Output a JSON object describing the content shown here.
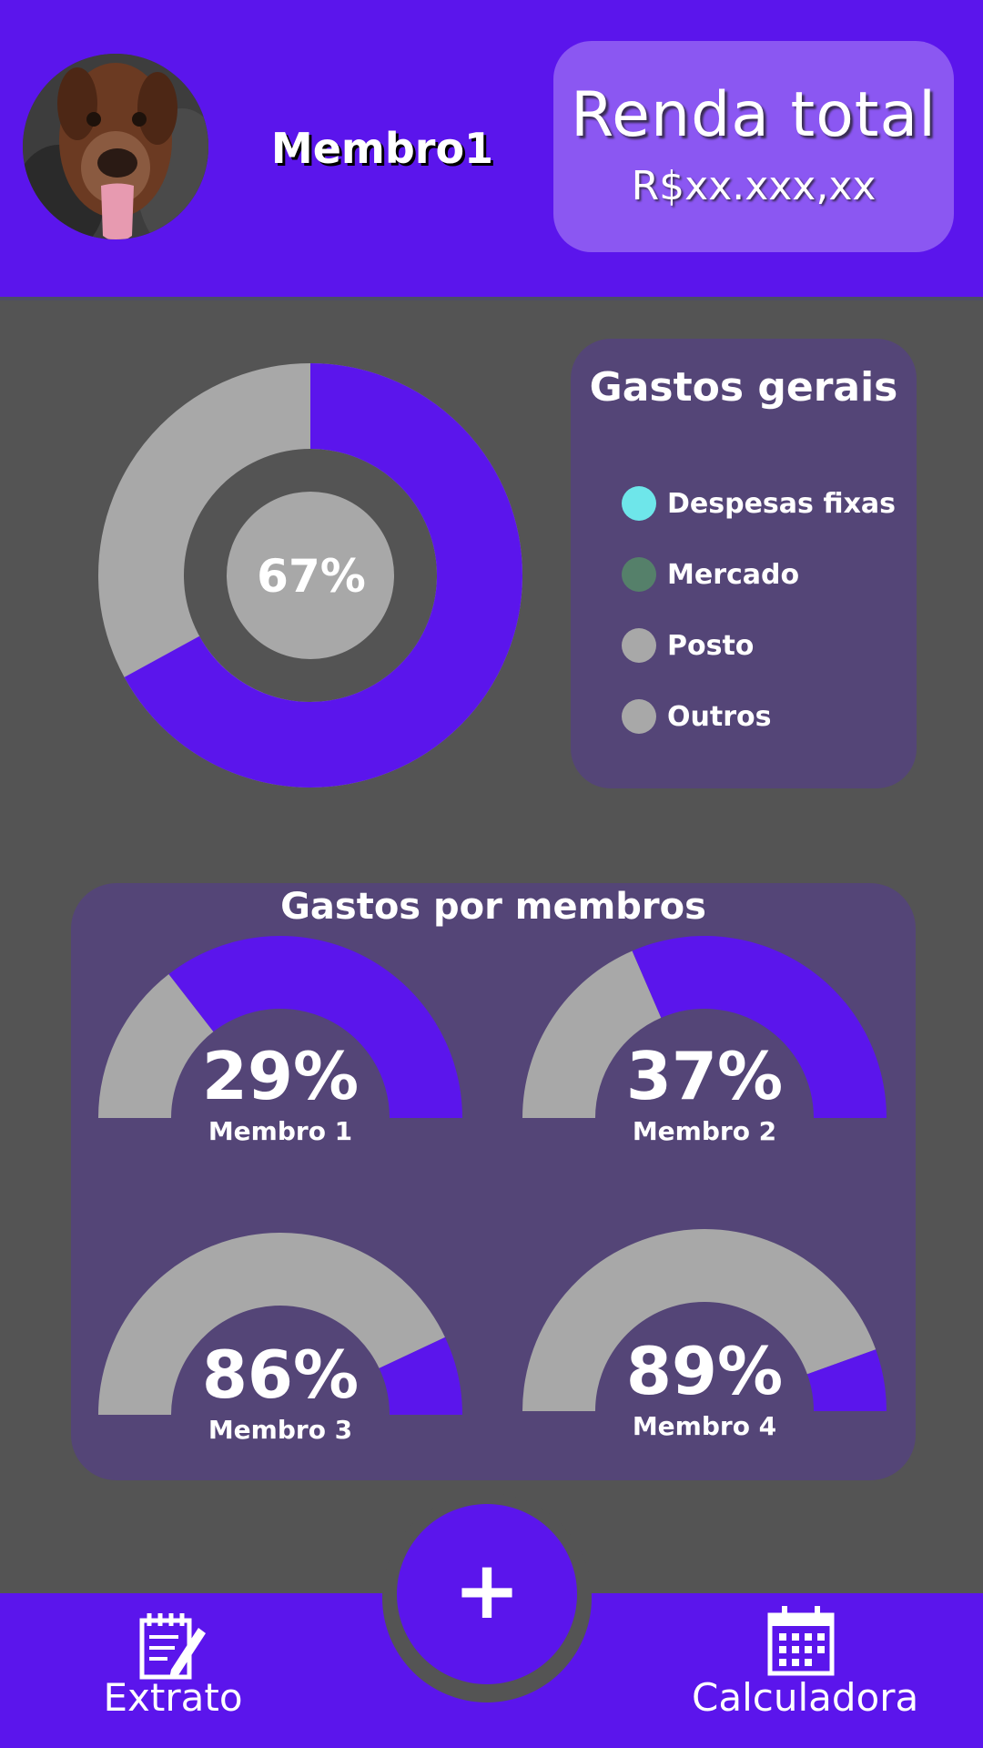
{
  "header": {
    "member_name": "Membro1",
    "income_title": "Renda total",
    "income_value": "R$xx.xxx,xx"
  },
  "overview": {
    "donut_label": "67%",
    "donut_fraction": 0.67,
    "legend_title": "Gastos gerais",
    "legend": [
      {
        "label": "Despesas fixas",
        "color": "#6ee6ea"
      },
      {
        "label": "Mercado",
        "color": "#55806a"
      },
      {
        "label": "Posto",
        "color": "#a8a8a8"
      },
      {
        "label": "Outros",
        "color": "#a8a8a8"
      }
    ]
  },
  "members": {
    "title": "Gastos por membros",
    "items": [
      {
        "pct_label": "29%",
        "name": "Membro 1",
        "fraction": 0.29
      },
      {
        "pct_label": "37%",
        "name": "Membro 2",
        "fraction": 0.37
      },
      {
        "pct_label": "86%",
        "name": "Membro 3",
        "fraction": 0.86
      },
      {
        "pct_label": "89%",
        "name": "Membro 4",
        "fraction": 0.89
      }
    ]
  },
  "nav": {
    "left_label": "Extrato",
    "left_icon": "notepad-pencil-icon",
    "right_label": "Calculadora",
    "right_icon": "calendar-icon",
    "add_icon": "plus-icon",
    "add_label": "+"
  },
  "colors": {
    "primary": "#5b15ec",
    "background": "#545454",
    "card": "#544577",
    "gray": "#a8a8a8",
    "income_card": "#8b57f2"
  }
}
